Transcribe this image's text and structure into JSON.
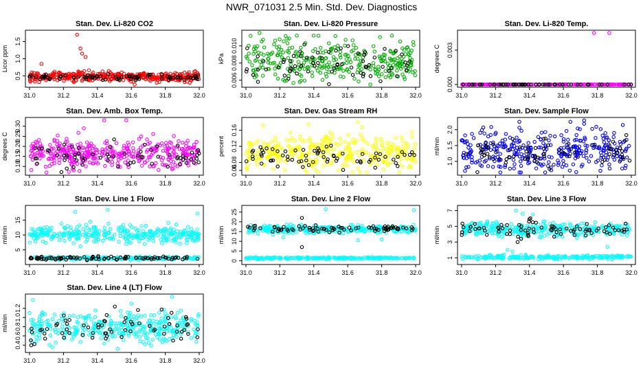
{
  "page": {
    "title": "NWR_071031  2.5 Min. Std. Dev. Diagnostics"
  },
  "chart_data": [
    {
      "type": "scatter",
      "title": "Stan. Dev. Li-820 CO2",
      "ylabel": "Licor ppm",
      "xlim": [
        31.0,
        32.0
      ],
      "ylim": [
        0.25,
        1.75
      ],
      "xticks": [
        "31.0",
        "31.2",
        "31.4",
        "31.6",
        "31.8",
        "32.0"
      ],
      "yticks": [
        "0.5",
        "1.0",
        "1.5"
      ],
      "series": [
        {
          "name": "all",
          "color": "#ff0000",
          "pattern": {
            "count": 380,
            "base": 0.48,
            "spread": 0.07,
            "outliers": [
              [
                31.28,
                1.7
              ],
              [
                31.3,
                1.3
              ],
              [
                31.31,
                1.15
              ],
              [
                31.33,
                1.05
              ],
              [
                31.62,
                0.25
              ],
              [
                31.07,
                0.85
              ]
            ]
          }
        },
        {
          "name": "selected",
          "color": "#000000",
          "pattern": {
            "count": 80,
            "base": 0.46,
            "spread": 0.04,
            "outliers": []
          }
        }
      ]
    },
    {
      "type": "scatter",
      "title": "Stan. Dev. Li-820 Pressure",
      "ylabel": "kPa",
      "xlim": [
        31.0,
        32.0
      ],
      "ylim": [
        0.0055,
        0.0115
      ],
      "xticks": [
        "31.0",
        "31.2",
        "31.4",
        "31.6",
        "31.8",
        "32.0"
      ],
      "yticks": [
        "0.006",
        "0.008",
        "0.010"
      ],
      "series": [
        {
          "name": "all",
          "color": "#00b000",
          "pattern": {
            "count": 330,
            "base": 0.0082,
            "spread": 0.0012,
            "outliers": [
              [
                31.08,
                0.0115
              ],
              [
                31.3,
                0.0112
              ],
              [
                31.86,
                0.0112
              ]
            ]
          }
        },
        {
          "name": "selected",
          "color": "#000000",
          "pattern": {
            "count": 70,
            "base": 0.0079,
            "spread": 0.001,
            "outliers": []
          }
        }
      ]
    },
    {
      "type": "scatter",
      "title": "Stan. Dev. Li-820 Temp.",
      "ylabel": "degrees C",
      "xlim": [
        31.0,
        32.0
      ],
      "ylim": [
        0.0,
        0.0045
      ],
      "xticks": [
        "31.0",
        "31.2",
        "31.4",
        "31.6",
        "31.8",
        "32.0"
      ],
      "yticks": [
        "0.000",
        "0.003"
      ],
      "series": [
        {
          "name": "all",
          "color": "#ff00ff",
          "pattern": {
            "count": 220,
            "base": 0.0,
            "spread": 0.0,
            "outliers": [
              [
                31.78,
                0.0045
              ],
              [
                31.87,
                0.0045
              ]
            ]
          }
        },
        {
          "name": "selected",
          "color": "#000000",
          "pattern": {
            "count": 60,
            "base": 0.0,
            "spread": 0.0,
            "outliers": []
          }
        }
      ]
    },
    {
      "type": "scatter",
      "title": "Stan. Dev. Amb. Box Temp.",
      "ylabel": "degrees C",
      "xlim": [
        31.0,
        32.0
      ],
      "ylim": [
        0.07,
        0.33
      ],
      "xticks": [
        "31.0",
        "31.2",
        "31.4",
        "31.6",
        "31.8",
        "32.0"
      ],
      "yticks": [
        "0.10",
        "0.15",
        "0.20",
        "0.25",
        "0.30"
      ],
      "series": [
        {
          "name": "all",
          "color": "#ff00ff",
          "pattern": {
            "count": 380,
            "base": 0.165,
            "spread": 0.035,
            "outliers": [
              [
                31.44,
                0.33
              ],
              [
                31.57,
                0.33
              ],
              [
                31.1,
                0.07
              ],
              [
                31.32,
                0.29
              ]
            ]
          }
        },
        {
          "name": "selected",
          "color": "#000000",
          "pattern": {
            "count": 70,
            "base": 0.15,
            "spread": 0.03,
            "outliers": []
          }
        }
      ]
    },
    {
      "type": "scatter",
      "title": "Stan. Dev. Gas Stream RH",
      "ylabel": "percent",
      "xlim": [
        31.0,
        32.0
      ],
      "ylim": [
        0.055,
        0.185
      ],
      "xticks": [
        "31.0",
        "31.2",
        "31.4",
        "31.6",
        "31.8",
        "32.0"
      ],
      "yticks": [
        "0.06",
        "0.08",
        "0.12",
        "0.16"
      ],
      "series": [
        {
          "name": "all",
          "color": "#ffff00",
          "pattern": {
            "count": 360,
            "base": 0.105,
            "spread": 0.022,
            "outliers": [
              [
                31.66,
                0.18
              ],
              [
                31.37,
                0.175
              ],
              [
                31.1,
                0.172
              ]
            ]
          }
        },
        {
          "name": "selected",
          "color": "#000000",
          "pattern": {
            "count": 70,
            "base": 0.095,
            "spread": 0.015,
            "outliers": []
          }
        }
      ]
    },
    {
      "type": "scatter",
      "title": "Stan. Dev. Sample Flow",
      "ylabel": "ml/min",
      "xlim": [
        31.0,
        32.0
      ],
      "ylim": [
        0.65,
        2.3
      ],
      "xticks": [
        "31.0",
        "31.2",
        "31.4",
        "31.6",
        "31.8",
        "32.0"
      ],
      "yticks": [
        "1.0",
        "1.5",
        "2.0"
      ],
      "series": [
        {
          "name": "all",
          "color": "#0000ff",
          "pattern": {
            "count": 340,
            "base": 1.35,
            "spread": 0.33,
            "outliers": [
              [
                31.34,
                2.25
              ],
              [
                31.02,
                0.7
              ],
              [
                31.95,
                2.15
              ]
            ]
          }
        },
        {
          "name": "selected",
          "color": "#000000",
          "pattern": {
            "count": 70,
            "base": 1.3,
            "spread": 0.28,
            "outliers": []
          }
        }
      ]
    },
    {
      "type": "scatter",
      "title": "Stan. Dev. Line 1 Flow",
      "ylabel": "ml/min",
      "xlim": [
        31.0,
        32.0
      ],
      "ylim": [
        1.0,
        19.0
      ],
      "xticks": [
        "31.0",
        "31.2",
        "31.4",
        "31.6",
        "31.8",
        "32.0"
      ],
      "yticks": [
        "5",
        "10",
        "15"
      ],
      "series": [
        {
          "name": "all",
          "color": "#00ffff",
          "pattern": {
            "count": 330,
            "base": 10.3,
            "spread": 1.4,
            "outliers": [
              [
                31.46,
                18.5
              ],
              [
                31.27,
                17.8
              ],
              [
                31.99,
                17.2
              ],
              [
                31.3,
                6.2
              ],
              [
                31.26,
                7.2
              ],
              [
                31.57,
                7.0
              ]
            ]
          }
        },
        {
          "name": "low",
          "color": "#00ffff",
          "pattern": {
            "count": 200,
            "base": 2.2,
            "spread": 0.25,
            "outliers": []
          }
        },
        {
          "name": "selected",
          "color": "#000000",
          "pattern": {
            "count": 90,
            "base": 2.2,
            "spread": 0.3,
            "outliers": []
          }
        }
      ]
    },
    {
      "type": "scatter",
      "title": "Stan. Dev. Line 2 Flow",
      "ylabel": "ml/min",
      "xlim": [
        31.0,
        32.0
      ],
      "ylim": [
        -0.5,
        27.0
      ],
      "xticks": [
        "31.0",
        "31.2",
        "31.4",
        "31.6",
        "31.8",
        "32.0"
      ],
      "yticks": [
        "0",
        "5",
        "10",
        "15",
        "20",
        "25"
      ],
      "series": [
        {
          "name": "all",
          "color": "#00ffff",
          "pattern": {
            "count": 330,
            "base": 16.2,
            "spread": 1.0,
            "outliers": [
              [
                31.47,
                26.5
              ],
              [
                31.99,
                26.0
              ],
              [
                31.66,
                10.5
              ],
              [
                31.8,
                11.0
              ],
              [
                31.22,
                12.0
              ]
            ]
          }
        },
        {
          "name": "low",
          "color": "#00ffff",
          "pattern": {
            "count": 230,
            "base": 1.4,
            "spread": 0.2,
            "outliers": []
          }
        },
        {
          "name": "selected",
          "color": "#000000",
          "pattern": {
            "count": 80,
            "base": 16.5,
            "spread": 0.8,
            "outliers": [
              [
                31.33,
                7.0
              ],
              [
                31.33,
                22.0
              ]
            ]
          }
        }
      ]
    },
    {
      "type": "scatter",
      "title": "Stan. Dev. Line 3 Flow",
      "ylabel": "ml/min",
      "xlim": [
        31.0,
        32.0
      ],
      "ylim": [
        0.5,
        7.3
      ],
      "xticks": [
        "31.0",
        "31.2",
        "31.4",
        "31.6",
        "31.8",
        "32.0"
      ],
      "yticks": [
        "1",
        "3",
        "5",
        "7"
      ],
      "series": [
        {
          "name": "all",
          "color": "#00ffff",
          "pattern": {
            "count": 330,
            "base": 4.6,
            "spread": 0.45,
            "outliers": [
              [
                31.32,
                7.0
              ],
              [
                31.36,
                6.6
              ],
              [
                31.42,
                6.5
              ],
              [
                31.86,
                2.4
              ],
              [
                31.68,
                3.5
              ],
              [
                31.27,
                2.0
              ],
              [
                31.3,
                1.8
              ]
            ]
          }
        },
        {
          "name": "low",
          "color": "#00ffff",
          "pattern": {
            "count": 220,
            "base": 1.1,
            "spread": 0.12,
            "outliers": []
          }
        },
        {
          "name": "selected",
          "color": "#000000",
          "pattern": {
            "count": 80,
            "base": 4.6,
            "spread": 0.5,
            "outliers": [
              [
                31.33,
                3.0
              ],
              [
                31.35,
                3.4
              ]
            ]
          }
        }
      ]
    },
    {
      "type": "scatter",
      "title": "Stan. Dev. Line 4 (LT) Flow",
      "ylabel": "ml/min",
      "xlim": [
        31.0,
        32.0
      ],
      "ylim": [
        0.3,
        1.45
      ],
      "xticks": [
        "31.0",
        "31.2",
        "31.4",
        "31.6",
        "31.8",
        "32.0"
      ],
      "yticks": [
        "0.4",
        "0.6",
        "0.8",
        "1.0",
        "1.2"
      ],
      "series": [
        {
          "name": "all",
          "color": "#00ffff",
          "pattern": {
            "count": 360,
            "base": 0.8,
            "spread": 0.17,
            "outliers": [
              [
                31.84,
                1.45
              ],
              [
                31.6,
                1.3
              ],
              [
                31.52,
                0.32
              ],
              [
                31.02,
                1.38
              ]
            ]
          }
        },
        {
          "name": "selected",
          "color": "#000000",
          "pattern": {
            "count": 70,
            "base": 0.78,
            "spread": 0.17,
            "outliers": []
          }
        }
      ]
    }
  ]
}
